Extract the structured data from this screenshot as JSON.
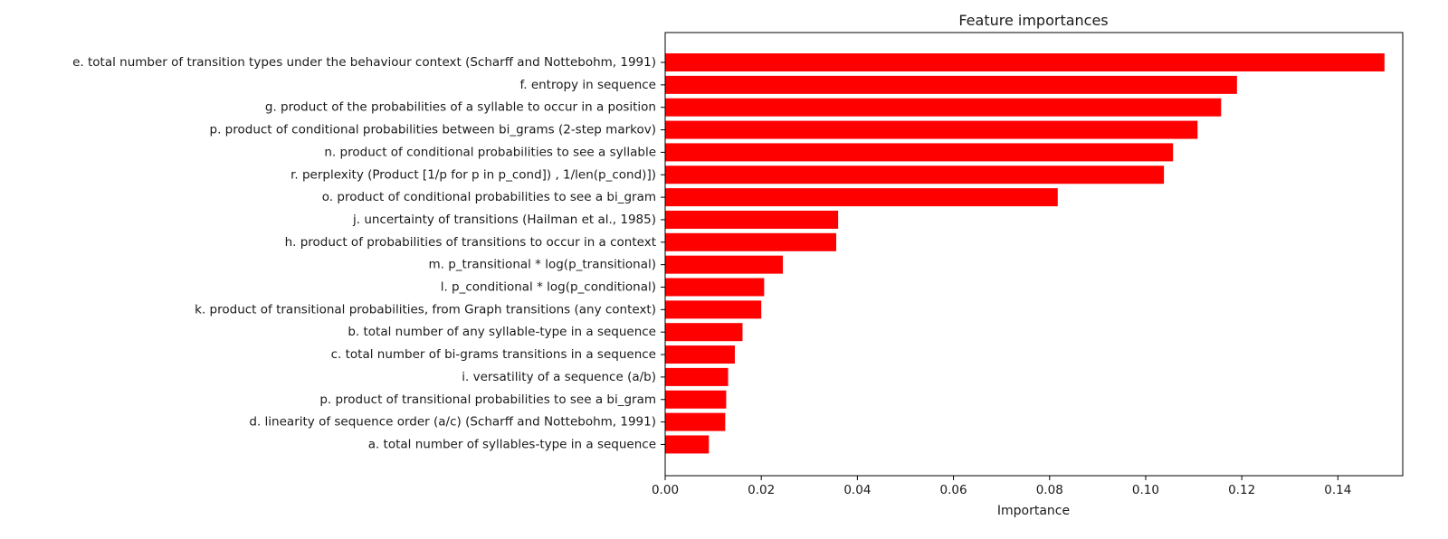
{
  "chart_data": {
    "type": "bar",
    "orientation": "horizontal",
    "title": "Feature importances",
    "xlabel": "Importance",
    "ylabel": "",
    "xlim": [
      0,
      0.1535
    ],
    "xticks": [
      {
        "value": 0.0,
        "label": "0.00"
      },
      {
        "value": 0.02,
        "label": "0.02"
      },
      {
        "value": 0.04,
        "label": "0.04"
      },
      {
        "value": 0.06,
        "label": "0.06"
      },
      {
        "value": 0.08,
        "label": "0.08"
      },
      {
        "value": 0.1,
        "label": "0.10"
      },
      {
        "value": 0.12,
        "label": "0.12"
      },
      {
        "value": 0.14,
        "label": "0.14"
      }
    ],
    "grid": false,
    "bar_color": "#ff0000",
    "categories": [
      "e. total number of transition types under the behaviour context (Scharff and Nottebohm, 1991)",
      "f. entropy in sequence",
      "g. product of the probabilities of a syllable to occur in a position",
      "p. product of conditional probabilities between bi_grams (2-step markov)",
      "n. product of conditional probabilities to see a syllable",
      "r. perplexity (Product [1/p for p in p_cond]) , 1/len(p_cond)])",
      "o. product of conditional probabilities to see a bi_gram",
      "j. uncertainty of transitions (Hailman et al., 1985)",
      "h. product of probabilities of transitions to occur in a context",
      "m. p_transitional * log(p_transitional)",
      "l. p_conditional * log(p_conditional)",
      "k. product of transitional probabilities, from Graph transitions (any context)",
      "b. total number of any syllable-type in a sequence",
      "c. total number of bi-grams transitions in a sequence",
      "i. versatility of a sequence (a/b)",
      "p. product of transitional probabilities to see a bi_gram",
      "d. linearity of sequence order (a/c) (Scharff and Nottebohm, 1991)",
      "a. total number of syllables-type in a sequence"
    ],
    "values": [
      0.1497,
      0.119,
      0.1157,
      0.1108,
      0.1057,
      0.1038,
      0.0817,
      0.036,
      0.0356,
      0.0245,
      0.0206,
      0.02,
      0.0161,
      0.0145,
      0.0131,
      0.0127,
      0.0125,
      0.0091
    ]
  }
}
